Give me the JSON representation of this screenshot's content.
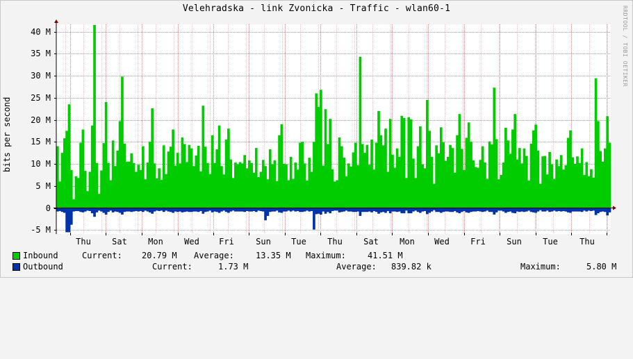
{
  "title": "Velehradska - link Zvonicka - Traffic - wlan60-1",
  "watermark": "RRDTOOL / TOBI OETIKER",
  "colors": {
    "background": "#f3f3f3",
    "canvas": "#ffffff",
    "grid_minor": "#e8c8c8",
    "grid_major": "#e08080",
    "inbound": "#00cc00",
    "outbound": "#0033aa",
    "axis_arrow": "#800000"
  },
  "chart_data": {
    "type": "area",
    "ylabel": "bits per second",
    "ylim": [
      -5,
      42
    ],
    "yticks": [
      {
        "v": 40,
        "label": "40 M"
      },
      {
        "v": 35,
        "label": "35 M"
      },
      {
        "v": 30,
        "label": "30 M"
      },
      {
        "v": 25,
        "label": "25 M"
      },
      {
        "v": 20,
        "label": "20 M"
      },
      {
        "v": 15,
        "label": "15 M"
      },
      {
        "v": 10,
        "label": "10 M"
      },
      {
        "v": 5,
        "label": "5 M"
      },
      {
        "v": 0,
        "label": "0"
      },
      {
        "v": -5,
        "label": "-5 M"
      }
    ],
    "xtick_labels": [
      "Thu",
      "Sat",
      "Mon",
      "Wed",
      "Fri",
      "Sun",
      "Tue",
      "Thu",
      "Sat",
      "Mon",
      "Wed",
      "Fri",
      "Sun",
      "Tue",
      "Thu"
    ],
    "grid": true,
    "series": [
      {
        "name": "Inbound",
        "values": [
          14.0,
          6.0,
          12.5,
          15.8,
          17.5,
          23.5,
          8.6,
          2.0,
          7.2,
          6.8,
          14.8,
          17.8,
          8.4,
          3.8,
          8.2,
          18.7,
          41.5,
          10.2,
          3.2,
          8.5,
          14.7,
          24.0,
          10.2,
          6.3,
          15.3,
          9.5,
          13.0,
          19.7,
          29.8,
          14.6,
          10.5,
          10.5,
          12.4,
          10.2,
          8.2,
          9.8,
          8.6,
          14.0,
          6.5,
          10.3,
          15.0,
          22.6,
          10.1,
          6.7,
          9.0,
          6.4,
          14.2,
          7.7,
          12.8,
          13.9,
          17.8,
          9.6,
          12.5,
          10.1,
          16.0,
          14.5,
          10.4,
          14.3,
          13.5,
          9.5,
          11.9,
          14.1,
          8.3,
          23.2,
          13.9,
          10.2,
          7.7,
          16.5,
          10.2,
          13.3,
          18.7,
          9.5,
          7.6,
          15.5,
          18.0,
          11.0,
          6.8,
          10.3,
          9.9,
          10.4,
          10.1,
          12.0,
          9.0,
          10.8,
          10.2,
          8.0,
          13.6,
          7.0,
          8.2,
          10.9,
          9.5,
          6.5,
          13.3,
          9.9,
          10.8,
          6.1,
          16.5,
          19.0,
          10.0,
          9.9,
          6.3,
          11.6,
          6.6,
          10.3,
          8.7,
          14.8,
          15.0,
          10.1,
          6.2,
          11.4,
          8.2,
          15.0,
          26.0,
          22.9,
          26.8,
          9.6,
          22.4,
          14.5,
          20.2,
          8.8,
          6.0,
          6.3,
          16.0,
          14.0,
          11.4,
          7.2,
          10.1,
          9.4,
          12.6,
          14.8,
          9.7,
          34.3,
          14.5,
          12.5,
          14.3,
          9.8,
          15.5,
          8.7,
          14.8,
          22.0,
          16.5,
          14.2,
          18.0,
          8.2,
          20.2,
          12.1,
          9.1,
          13.5,
          11.6,
          20.9,
          20.4,
          6.8,
          20.6,
          20.1,
          11.2,
          6.8,
          14.0,
          18.5,
          9.9,
          9.0,
          24.5,
          17.5,
          11.6,
          5.5,
          14.2,
          12.4,
          18.3,
          14.9,
          10.7,
          11.6,
          14.3,
          13.6,
          8.0,
          16.5,
          21.3,
          13.4,
          8.6,
          15.9,
          19.4,
          15.0,
          10.8,
          9.3,
          9.1,
          10.9,
          14.0,
          10.3,
          6.6,
          15.1,
          14.4,
          27.3,
          15.6,
          6.5,
          7.5,
          10.3,
          18.2,
          15.3,
          12.3,
          17.8,
          21.3,
          11.0,
          13.6,
          10.1,
          13.5,
          11.8,
          6.2,
          14.6,
          17.6,
          18.9,
          13.0,
          5.5,
          11.7,
          11.8,
          7.6,
          12.7,
          9.9,
          6.6,
          11.0,
          9.5,
          12.0,
          8.7,
          9.7,
          15.9,
          17.6,
          11.5,
          10.0,
          11.7,
          10.2,
          13.5,
          7.5,
          10.4,
          7.2,
          8.8,
          6.9,
          29.4,
          19.7,
          12.9,
          10.5,
          13.5,
          20.8,
          14.8
        ],
        "current": "20.79 M",
        "average": "13.35 M",
        "maximum": "41.51 M"
      },
      {
        "name": "Outbound",
        "values": [
          -0.8,
          -0.7,
          -0.9,
          -1.1,
          -5.5,
          -5.5,
          -3.8,
          -0.8,
          -0.7,
          -0.7,
          -0.9,
          -1.0,
          -0.8,
          -0.6,
          -0.7,
          -1.2,
          -2.0,
          -1.0,
          -0.6,
          -0.8,
          -1.1,
          -1.5,
          -0.9,
          -0.6,
          -1.0,
          -0.8,
          -0.9,
          -1.1,
          -1.5,
          -0.9,
          -0.8,
          -0.8,
          -0.9,
          -0.8,
          -0.7,
          -0.8,
          -0.7,
          -0.9,
          -0.6,
          -0.8,
          -1.0,
          -1.3,
          -0.8,
          -0.6,
          -0.7,
          -0.6,
          -0.9,
          -0.6,
          -0.8,
          -0.9,
          -1.1,
          -0.8,
          -0.9,
          -0.8,
          -1.0,
          -0.9,
          -0.8,
          -0.9,
          -0.9,
          -0.8,
          -0.8,
          -0.9,
          -0.7,
          -1.3,
          -0.9,
          -0.8,
          -0.6,
          -1.0,
          -0.8,
          -0.9,
          -1.1,
          -0.8,
          -0.6,
          -0.9,
          -1.1,
          -0.8,
          -0.6,
          -0.8,
          -0.8,
          -0.8,
          -0.8,
          -0.9,
          -0.7,
          -0.8,
          -0.8,
          -0.7,
          -0.9,
          -0.6,
          -0.7,
          -0.8,
          -2.8,
          -1.8,
          -0.9,
          -0.8,
          -0.8,
          -0.6,
          -1.0,
          -1.1,
          -0.8,
          -0.8,
          -0.6,
          -0.8,
          -0.6,
          -0.8,
          -0.7,
          -0.9,
          -0.9,
          -0.8,
          -0.6,
          -0.8,
          -0.7,
          -4.9,
          -1.4,
          -1.3,
          -1.5,
          -0.8,
          -1.3,
          -0.9,
          -1.2,
          -0.7,
          -0.6,
          -0.6,
          -1.0,
          -0.9,
          -0.8,
          -0.6,
          -0.8,
          -0.8,
          -0.9,
          -0.9,
          -0.8,
          -1.8,
          -0.9,
          -0.9,
          -0.9,
          -0.8,
          -1.0,
          -0.7,
          -0.9,
          -1.3,
          -1.0,
          -0.9,
          -1.1,
          -0.7,
          -1.2,
          -0.8,
          -0.8,
          -0.9,
          -0.8,
          -1.2,
          -1.2,
          -0.6,
          -1.2,
          -1.2,
          -0.8,
          -0.6,
          -0.9,
          -1.1,
          -0.8,
          -0.7,
          -1.4,
          -1.1,
          -0.8,
          -0.5,
          -0.9,
          -0.9,
          -1.1,
          -0.9,
          -0.8,
          -0.8,
          -0.9,
          -0.9,
          -0.7,
          -1.0,
          -1.2,
          -0.9,
          -0.7,
          -1.0,
          -1.1,
          -0.9,
          -0.8,
          -0.8,
          -0.7,
          -0.8,
          -0.9,
          -0.8,
          -0.6,
          -0.9,
          -0.9,
          -1.5,
          -1.0,
          -0.6,
          -0.6,
          -0.8,
          -1.1,
          -0.9,
          -0.8,
          -1.1,
          -1.2,
          -0.8,
          -0.9,
          -0.8,
          -0.9,
          -0.8,
          -0.6,
          -0.9,
          -1.0,
          -1.1,
          -0.8,
          -0.5,
          -0.8,
          -0.8,
          -0.6,
          -0.9,
          -0.8,
          -0.6,
          -0.8,
          -0.7,
          -0.8,
          -0.7,
          -0.8,
          -1.0,
          -1.1,
          -0.8,
          -0.8,
          -0.8,
          -0.8,
          -0.9,
          -0.6,
          -0.8,
          -0.6,
          -0.7,
          -0.6,
          -1.6,
          -1.2,
          -0.9,
          -0.8,
          -0.9,
          -1.7,
          -1.0
        ],
        "current": "1.73 M",
        "average": "839.82 k",
        "maximum": "5.80 M"
      }
    ]
  },
  "legend": {
    "current_label": "Current:",
    "average_label": "Average:",
    "maximum_label": "Maximum:"
  }
}
